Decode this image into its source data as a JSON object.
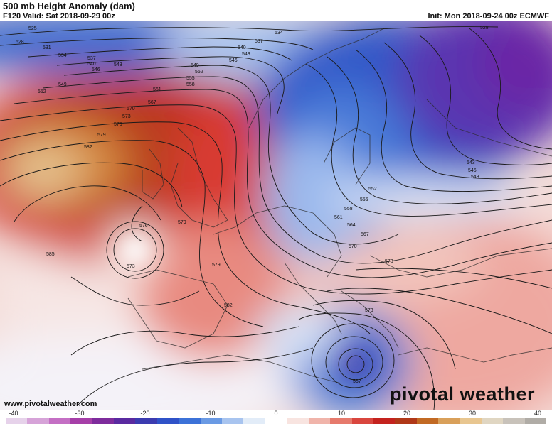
{
  "header": {
    "title": "500 mb Height Anomaly (dam)",
    "valid": "F120 Valid: Sat 2018-09-29 00z",
    "init": "Init: Mon 2018-09-24 00z ECMWF"
  },
  "footer": {
    "url": "www.pivotalweather.com",
    "brand": "pivotal weather"
  },
  "colorbar": {
    "ticks": [
      "-40",
      "-30",
      "-20",
      "-10",
      "0",
      "10",
      "20",
      "30",
      "40"
    ],
    "colors": [
      "#e6d2ea",
      "#d6a3d8",
      "#c46fc4",
      "#a63fa8",
      "#7e2c9c",
      "#5a2aa0",
      "#3b3bb0",
      "#2f52c8",
      "#3c72d8",
      "#6a9ae4",
      "#a8c4ef",
      "#e2ecf8",
      "#ffffff",
      "#f8e4e0",
      "#f0b4aa",
      "#e67a6c",
      "#d9463e",
      "#c4231e",
      "#b03818",
      "#c26a24",
      "#d9a05a",
      "#e8c690",
      "#e0d6c2",
      "#c8c2ba",
      "#b0aca6"
    ]
  },
  "map": {
    "contour_labels": [
      "525",
      "528",
      "531",
      "534",
      "537",
      "540",
      "543",
      "546",
      "549",
      "552",
      "555",
      "558",
      "561",
      "564",
      "567",
      "570",
      "573",
      "576",
      "579",
      "582",
      "585",
      "534",
      "537",
      "540",
      "543",
      "546",
      "549",
      "552",
      "555",
      "558",
      "561",
      "567",
      "570",
      "573",
      "576",
      "579",
      "582",
      "585",
      "543",
      "546",
      "549",
      "552",
      "555",
      "558",
      "561",
      "564",
      "567",
      "570",
      "573",
      "573",
      "579",
      "582",
      "576",
      "573",
      "567",
      "528"
    ]
  }
}
